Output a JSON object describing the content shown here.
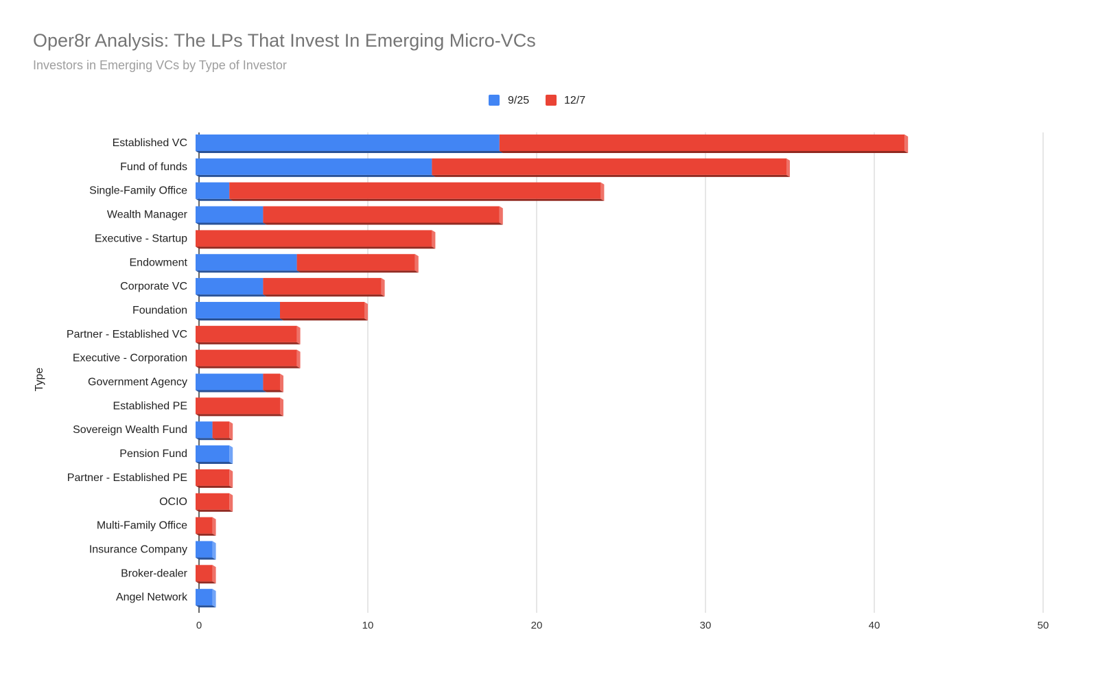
{
  "chart_data": {
    "type": "bar",
    "orientation": "horizontal",
    "stacked": true,
    "style": "3d",
    "title": "Oper8r Analysis: The LPs That Invest In Emerging Micro-VCs",
    "subtitle": "Investors in Emerging VCs by Type of Investor",
    "xlabel": "",
    "ylabel": "Type",
    "xlim": [
      0,
      50
    ],
    "xticks": [
      0,
      10,
      20,
      30,
      40,
      50
    ],
    "grid": true,
    "legend_position": "top",
    "categories": [
      "Established VC",
      "Fund of funds",
      "Single-Family Office",
      "Wealth Manager",
      "Executive - Startup",
      "Endowment",
      "Corporate VC",
      "Foundation",
      "Partner - Established VC",
      "Executive - Corporation",
      "Government Agency",
      "Established PE",
      "Sovereign Wealth Fund",
      "Pension Fund",
      "Partner - Established PE",
      "OCIO",
      "Multi-Family Office",
      "Insurance Company",
      "Broker-dealer",
      "Angel Network"
    ],
    "series": [
      {
        "name": "9/25",
        "color": "#4285f4",
        "values": [
          18,
          14,
          2,
          4,
          0,
          6,
          4,
          5,
          0,
          0,
          4,
          0,
          1,
          2,
          0,
          0,
          0,
          1,
          0,
          1
        ]
      },
      {
        "name": "12/7",
        "color": "#ea4335",
        "values": [
          24,
          21,
          22,
          14,
          14,
          7,
          7,
          5,
          6,
          6,
          1,
          5,
          1,
          0,
          2,
          2,
          1,
          0,
          1,
          0
        ]
      }
    ]
  }
}
